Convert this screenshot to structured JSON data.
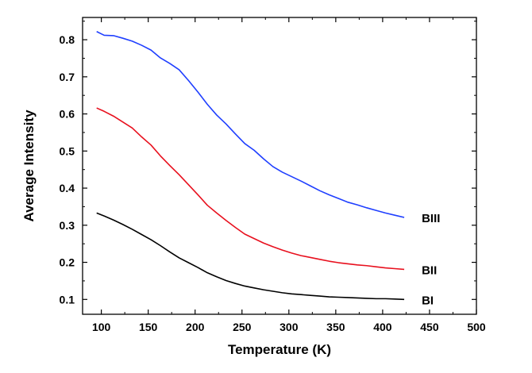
{
  "chart_data": {
    "type": "line",
    "title": "",
    "xlabel": "Temperature (K)",
    "ylabel": "Average Intensity",
    "xlim": [
      80,
      500
    ],
    "ylim": [
      0.06,
      0.86
    ],
    "x_ticks": [
      100,
      150,
      200,
      250,
      300,
      350,
      400,
      450,
      500
    ],
    "y_ticks": [
      0.1,
      0.2,
      0.3,
      0.4,
      0.5,
      0.6,
      0.7,
      0.8
    ],
    "grid": false,
    "legend": "inline labels at right end of each series",
    "series": [
      {
        "name": "BIII",
        "color": "#1f3fff",
        "x": [
          95,
          103,
          113,
          123,
          133,
          143,
          153,
          163,
          173,
          183,
          193,
          203,
          213,
          223,
          233,
          243,
          253,
          263,
          273,
          283,
          293,
          303,
          313,
          323,
          333,
          343,
          353,
          363,
          373,
          383,
          393,
          403,
          413,
          423
        ],
        "y": [
          0.822,
          0.812,
          0.811,
          0.804,
          0.796,
          0.785,
          0.772,
          0.751,
          0.736,
          0.719,
          0.69,
          0.659,
          0.626,
          0.597,
          0.573,
          0.546,
          0.52,
          0.502,
          0.479,
          0.458,
          0.443,
          0.431,
          0.419,
          0.406,
          0.393,
          0.382,
          0.372,
          0.362,
          0.355,
          0.347,
          0.34,
          0.333,
          0.327,
          0.321
        ]
      },
      {
        "name": "BII",
        "color": "#e8101e",
        "x": [
          95,
          103,
          113,
          123,
          133,
          143,
          153,
          163,
          173,
          183,
          193,
          203,
          213,
          223,
          233,
          243,
          253,
          263,
          273,
          283,
          293,
          303,
          313,
          323,
          333,
          343,
          353,
          363,
          373,
          383,
          393,
          403,
          413,
          423
        ],
        "y": [
          0.616,
          0.607,
          0.594,
          0.578,
          0.562,
          0.538,
          0.516,
          0.487,
          0.461,
          0.436,
          0.409,
          0.382,
          0.354,
          0.333,
          0.313,
          0.294,
          0.276,
          0.264,
          0.252,
          0.242,
          0.233,
          0.225,
          0.218,
          0.213,
          0.208,
          0.203,
          0.199,
          0.196,
          0.193,
          0.191,
          0.188,
          0.185,
          0.183,
          0.181
        ]
      },
      {
        "name": "BI",
        "color": "#000000",
        "x": [
          95,
          103,
          113,
          123,
          133,
          143,
          153,
          163,
          173,
          183,
          193,
          203,
          213,
          223,
          233,
          243,
          253,
          263,
          273,
          283,
          293,
          303,
          313,
          323,
          333,
          343,
          353,
          363,
          373,
          383,
          393,
          403,
          413,
          423
        ],
        "y": [
          0.333,
          0.325,
          0.314,
          0.302,
          0.289,
          0.275,
          0.261,
          0.245,
          0.228,
          0.212,
          0.199,
          0.186,
          0.172,
          0.161,
          0.151,
          0.143,
          0.136,
          0.131,
          0.126,
          0.122,
          0.118,
          0.115,
          0.113,
          0.111,
          0.109,
          0.107,
          0.106,
          0.105,
          0.104,
          0.103,
          0.102,
          0.102,
          0.101,
          0.1
        ]
      }
    ]
  }
}
